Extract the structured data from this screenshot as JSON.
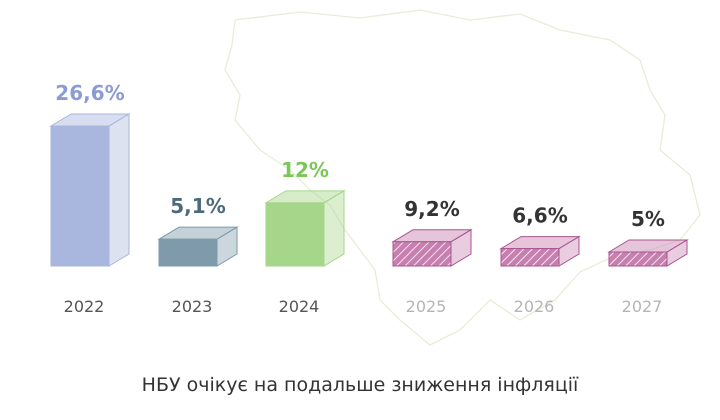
{
  "chart_data": {
    "type": "bar",
    "style": "3d-boxes",
    "title": "НБУ очікує на подальше зниження інфляції",
    "categories": [
      "2022",
      "2023",
      "2024",
      "2025",
      "2026",
      "2027"
    ],
    "values": [
      26.6,
      5.1,
      12,
      9.2,
      6.6,
      5
    ],
    "value_labels": [
      "26,6%",
      "5,1%",
      "12%",
      "9,2%",
      "6,6%",
      "5%"
    ],
    "forecast": [
      false,
      false,
      false,
      true,
      true,
      true
    ],
    "colors": {
      "2022": "#a9b6dd",
      "2023": "#7f9aab",
      "2024": "#a6d68a",
      "forecast": "#c77fb0",
      "label_2022": "#8b9bd3",
      "label_2023": "#4d6a7d",
      "label_2024": "#7cc65a",
      "label_forecast": "#333333",
      "year_actual": "#555555",
      "year_forecast": "#b5b5b5",
      "map_outline": "#e8ecd9"
    },
    "grid": false,
    "legend": "none"
  }
}
